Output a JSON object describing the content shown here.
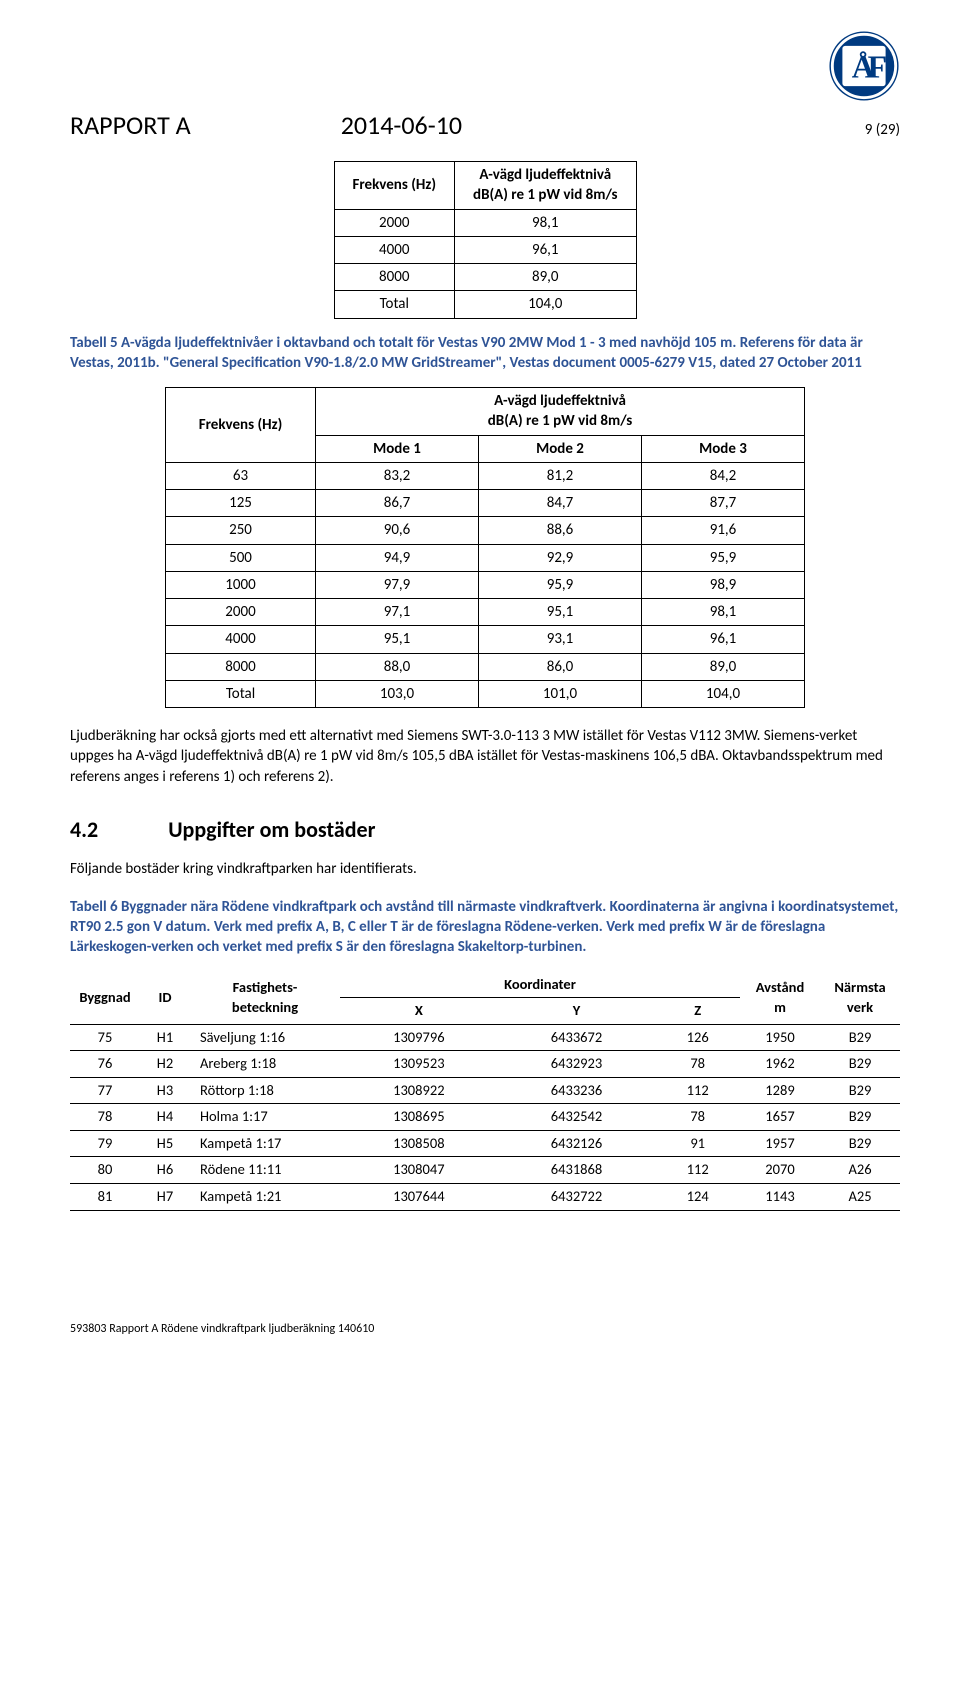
{
  "logo": {
    "outer": "#003a80",
    "letterBg": "#ffffff",
    "letterFg": "#003a80"
  },
  "header": {
    "title": "RAPPORT A",
    "date": "2014-06-10",
    "pagenum": "9 (29)"
  },
  "table1": {
    "head": [
      "Frekvens (Hz)",
      "A-vägd ljudeffektnivå\ndB(A) re 1 pW vid 8m/s"
    ],
    "rows": [
      [
        "2000",
        "98,1"
      ],
      [
        "4000",
        "96,1"
      ],
      [
        "8000",
        "89,0"
      ],
      [
        "Total",
        "104,0"
      ]
    ]
  },
  "caption1": "Tabell 5 A-vägda ljudeffektnivåer i oktavband och totalt för Vestas V90 2MW Mod 1 - 3 med navhöjd 105 m. Referens för data är Vestas, 2011b. \"General Specification V90-1.8/2.0 MW GridStreamer\", Vestas document 0005-6279 V15, dated 27 October 2011",
  "table2": {
    "leftHead": "Frekvens (Hz)",
    "topHead": "A-vägd ljudeffektnivå\ndB(A) re 1 pW vid 8m/s",
    "modes": [
      "Mode 1",
      "Mode 2",
      "Mode 3"
    ],
    "rows": [
      [
        "63",
        "83,2",
        "81,2",
        "84,2"
      ],
      [
        "125",
        "86,7",
        "84,7",
        "87,7"
      ],
      [
        "250",
        "90,6",
        "88,6",
        "91,6"
      ],
      [
        "500",
        "94,9",
        "92,9",
        "95,9"
      ],
      [
        "1000",
        "97,9",
        "95,9",
        "98,9"
      ],
      [
        "2000",
        "97,1",
        "95,1",
        "98,1"
      ],
      [
        "4000",
        "95,1",
        "93,1",
        "96,1"
      ],
      [
        "8000",
        "88,0",
        "86,0",
        "89,0"
      ],
      [
        "Total",
        "103,0",
        "101,0",
        "104,0"
      ]
    ]
  },
  "para1": "Ljudberäkning har också gjorts med ett alternativt med Siemens SWT-3.0-113 3 MW  istället för Vestas V112 3MW. Siemens-verket uppges ha A-vägd ljudeffektnivå dB(A) re 1 pW vid 8m/s 105,5 dBA istället för Vestas-maskinens 106,5 dBA. Oktavbandsspektrum med referens anges i referens 1) och referens 2).",
  "section": {
    "num": "4.2",
    "title": "Uppgifter om bostäder"
  },
  "para2": "Följande bostäder kring vindkraftparken har identifierats.",
  "caption2": "Tabell 6 Byggnader nära Rödene vindkraftpark och avstånd till närmaste vindkraftverk. Koordinaterna är angivna i koordinatsystemet, RT90 2.5 gon V datum. Verk med prefix A, B, C eller T är de föreslagna Rödene-verken. Verk med prefix W är de föreslagna Lärkeskogen-verken och verket med prefix S är den föreslagna Skakeltorp-turbinen.",
  "table3": {
    "head": {
      "byggnad": "Byggnad",
      "id": "ID",
      "fast": "Fastighets-\nbeteckning",
      "koord": "Koordinater",
      "avst": "Avstånd\nm",
      "verk": "Närmsta\nverk",
      "xyz": [
        "X",
        "Y",
        "Z"
      ]
    },
    "rows": [
      [
        "75",
        "H1",
        "Säveljung 1:16",
        "1309796",
        "6433672",
        "126",
        "1950",
        "B29"
      ],
      [
        "76",
        "H2",
        "Areberg 1:18",
        "1309523",
        "6432923",
        "78",
        "1962",
        "B29"
      ],
      [
        "77",
        "H3",
        "Röttorp 1:18",
        "1308922",
        "6433236",
        "112",
        "1289",
        "B29"
      ],
      [
        "78",
        "H4",
        "Holma 1:17",
        "1308695",
        "6432542",
        "78",
        "1657",
        "B29"
      ],
      [
        "79",
        "H5",
        "Kampetå 1:17",
        "1308508",
        "6432126",
        "91",
        "1957",
        "B29"
      ],
      [
        "80",
        "H6",
        "Rödene 11:11",
        "1308047",
        "6431868",
        "112",
        "2070",
        "A26"
      ],
      [
        "81",
        "H7",
        "Kampetå 1:21",
        "1307644",
        "6432722",
        "124",
        "1143",
        "A25"
      ]
    ]
  },
  "footer": "593803 Rapport A Rödene vindkraftpark ljudberäkning 140610"
}
